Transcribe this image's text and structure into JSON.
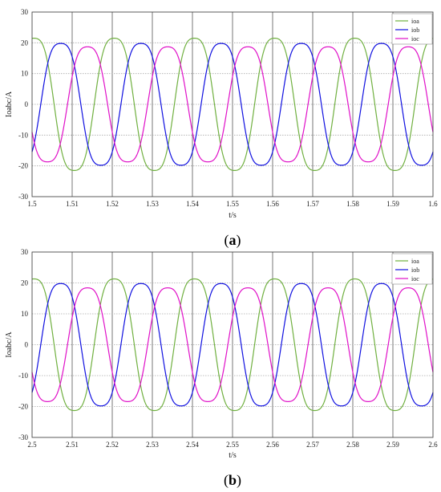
{
  "colors": {
    "ioa": "#70b040",
    "iob": "#1010e0",
    "ioc": "#e010c8",
    "grid_major": "#555555",
    "grid_minor": "#aaaaaa"
  },
  "chart_data": [
    {
      "type": "line",
      "caption_open": "(",
      "caption_letter": "a",
      "caption_close": ")",
      "xlabel": "t/s",
      "ylabel": "Ioabc/A",
      "xlim": [
        1.5,
        1.6
      ],
      "ylim": [
        -30,
        30
      ],
      "xticks": [
        "1.5",
        "1.51",
        "1.52",
        "1.53",
        "1.54",
        "1.55",
        "1.56",
        "1.57",
        "1.58",
        "1.59",
        "1.6"
      ],
      "yticks": [
        "30",
        "20",
        "10",
        "0",
        "-10",
        "-20",
        "-30"
      ],
      "grid": true,
      "legend_position": "top-right",
      "frequency_hz": 50,
      "series": [
        {
          "name": "ioa",
          "amplitude": 21.5,
          "phase_deg": 81,
          "color": "#70b040"
        },
        {
          "name": "iob",
          "amplitude": 19.8,
          "phase_deg": -39,
          "color": "#1010e0"
        },
        {
          "name": "ioc",
          "amplitude": 18.7,
          "phase_deg": -159,
          "color": "#e010c8"
        }
      ]
    },
    {
      "type": "line",
      "caption_open": "(",
      "caption_letter": "b",
      "caption_close": ")",
      "xlabel": "t/s",
      "ylabel": "Ioabc/A",
      "xlim": [
        2.5,
        2.6
      ],
      "ylim": [
        -30,
        30
      ],
      "xticks": [
        "2.5",
        "2.51",
        "2.52",
        "2.53",
        "2.54",
        "2.55",
        "2.56",
        "2.57",
        "2.58",
        "2.59",
        "2.6"
      ],
      "yticks": [
        "30",
        "20",
        "10",
        "0",
        "-10",
        "-20",
        "-30"
      ],
      "grid": true,
      "legend_position": "top-right",
      "frequency_hz": 50,
      "series": [
        {
          "name": "ioa",
          "amplitude": 21.3,
          "phase_deg": 81,
          "color": "#70b040"
        },
        {
          "name": "iob",
          "amplitude": 19.8,
          "phase_deg": -39,
          "color": "#1010e0"
        },
        {
          "name": "ioc",
          "amplitude": 18.4,
          "phase_deg": -159,
          "color": "#e010c8"
        }
      ]
    }
  ]
}
